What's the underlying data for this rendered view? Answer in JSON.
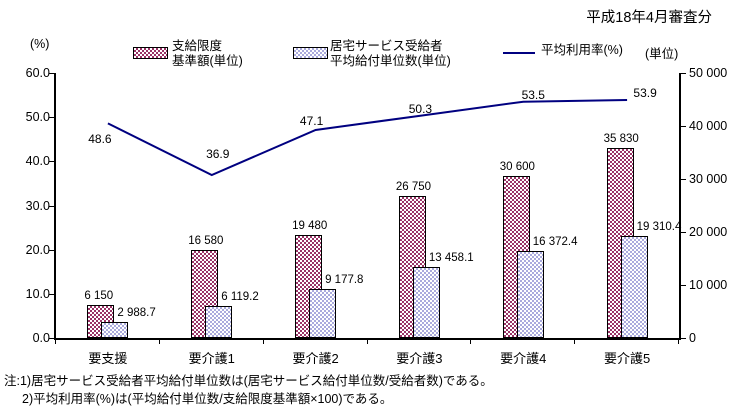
{
  "header": {
    "title": "平成18年4月審査分"
  },
  "legend": {
    "limit_label": "支給限度\n基準額(単位)",
    "benefit_label": "居宅サービス受給者\n平均給付単位数(単位)",
    "rate_label": "平均利用率(%)"
  },
  "axes": {
    "left_unit": "(%)",
    "right_unit": "(単位)",
    "left_ticks": [
      "0.0",
      "10.0",
      "20.0",
      "30.0",
      "40.0",
      "50.0",
      "60.0"
    ],
    "right_ticks": [
      "0",
      "10 000",
      "20 000",
      "30 000",
      "40 000",
      "50 000"
    ]
  },
  "chart_data": {
    "type": "bar+line combo",
    "categories": [
      "要支援",
      "要介護1",
      "要介護2",
      "要介護3",
      "要介護4",
      "要介護5"
    ],
    "series": [
      {
        "name": "支給限度基準額(単位)",
        "type": "bar",
        "axis": "right",
        "color": "#993366",
        "values": [
          6150,
          16580,
          19480,
          26750,
          30600,
          35830
        ],
        "labels": [
          "6 150",
          "16 580",
          "19 480",
          "26 750",
          "30 600",
          "35 830"
        ]
      },
      {
        "name": "居宅サービス受給者平均給付単位数(単位)",
        "type": "bar",
        "axis": "right",
        "color": "#ccccff",
        "values": [
          2988.7,
          6119.2,
          9177.8,
          13458.1,
          16372.4,
          19310.4
        ],
        "labels": [
          "2 988.7",
          "6 119.2",
          "9 177.8",
          "13 458.1",
          "16 372.4",
          "19 310.4"
        ]
      },
      {
        "name": "平均利用率(%)",
        "type": "line",
        "axis": "left",
        "color": "#000080",
        "values": [
          48.6,
          36.9,
          47.1,
          50.3,
          53.5,
          53.9
        ],
        "labels": [
          "48.6",
          "36.9",
          "47.1",
          "50.3",
          "53.5",
          "53.9"
        ]
      }
    ],
    "left_axis": {
      "unit": "(%)",
      "min": 0,
      "max": 60
    },
    "right_axis": {
      "unit": "(単位)",
      "min": 0,
      "max": 50000
    },
    "grid": false,
    "legend_position": "top"
  },
  "notes": {
    "line1": "注:1)居宅サービス受給者平均給付単位数は(居宅サービス給付単位数/受給者数)である。",
    "line2": "2)平均利用率(%)は(平均給付単位数/支給限度基準額×100)である。"
  }
}
